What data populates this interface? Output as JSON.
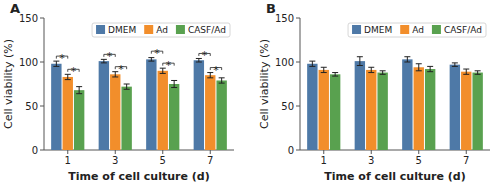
{
  "chart_data": [
    {
      "type": "bar",
      "title": "A",
      "categories": [
        "1",
        "3",
        "5",
        "7"
      ],
      "series": [
        {
          "name": "DMEM",
          "values": [
            98,
            101,
            103,
            102
          ],
          "errors": [
            3,
            2,
            2,
            2
          ]
        },
        {
          "name": "Ad",
          "values": [
            83,
            86,
            90,
            85
          ],
          "errors": [
            3,
            3,
            3,
            3
          ]
        },
        {
          "name": "CASF/Ad",
          "values": [
            68,
            72,
            75,
            79
          ],
          "errors": [
            4,
            3,
            4,
            3
          ]
        }
      ],
      "x_label": "Time of cell culture (d)",
      "y_label": "Cell viability (%)",
      "ylim": [
        0,
        150
      ],
      "yticks": [
        0,
        50,
        100,
        150
      ],
      "legend": "upper right",
      "annotations": [
        {
          "text": "*",
          "category": "1",
          "series": [
            "DMEM",
            "Ad"
          ]
        },
        {
          "text": "*",
          "category": "1",
          "series": [
            "Ad",
            "CASF/Ad"
          ]
        },
        {
          "text": "*",
          "category": "3",
          "series": [
            "DMEM",
            "Ad"
          ]
        },
        {
          "text": "*",
          "category": "3",
          "series": [
            "Ad",
            "CASF/Ad"
          ]
        },
        {
          "text": "*",
          "category": "5",
          "series": [
            "DMEM",
            "Ad"
          ]
        },
        {
          "text": "*",
          "category": "5",
          "series": [
            "Ad",
            "CASF/Ad"
          ]
        },
        {
          "text": "*",
          "category": "7",
          "series": [
            "DMEM",
            "Ad"
          ]
        },
        {
          "text": "*",
          "category": "7",
          "series": [
            "Ad",
            "CASF/Ad"
          ]
        }
      ]
    },
    {
      "type": "bar",
      "title": "B",
      "categories": [
        "1",
        "3",
        "5",
        "7"
      ],
      "series": [
        {
          "name": "DMEM",
          "values": [
            98,
            101,
            103,
            97
          ],
          "errors": [
            3,
            5,
            3,
            2
          ]
        },
        {
          "name": "Ad",
          "values": [
            91,
            91,
            94,
            89
          ],
          "errors": [
            3,
            3,
            4,
            3
          ]
        },
        {
          "name": "CASF/Ad",
          "values": [
            86,
            88,
            92,
            88
          ],
          "errors": [
            2,
            2,
            3,
            2
          ]
        }
      ],
      "x_label": "Time of cell culture (d)",
      "y_label": "Cell viability (%)",
      "ylim": [
        0,
        150
      ],
      "yticks": [
        0,
        50,
        100,
        150
      ],
      "legend": "upper right"
    }
  ]
}
